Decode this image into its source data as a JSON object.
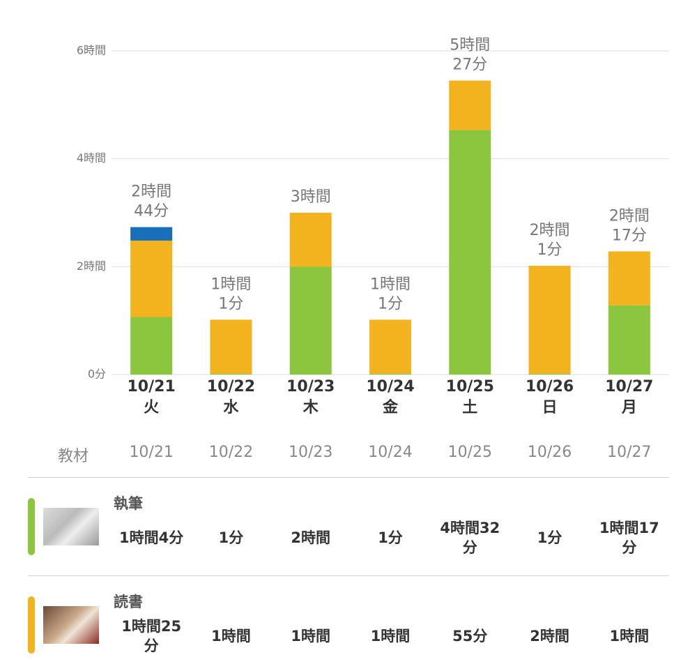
{
  "chart_data": {
    "type": "bar",
    "stacked": true,
    "categories": [
      "10/21",
      "10/22",
      "10/23",
      "10/24",
      "10/25",
      "10/26",
      "10/27"
    ],
    "weekdays": [
      "火",
      "水",
      "木",
      "金",
      "土",
      "日",
      "月"
    ],
    "series": [
      {
        "name": "執筆",
        "color": "#8cc63f",
        "values": [
          1.0667,
          0.0167,
          2,
          0.0167,
          4.5333,
          0.0167,
          1.2833
        ],
        "value_labels": [
          "1時間4分",
          "1分",
          "2時間",
          "1分",
          "4時間32分",
          "1分",
          "1時間17分"
        ]
      },
      {
        "name": "読書",
        "color": "#f2b31e",
        "values": [
          1.4167,
          1,
          1,
          1,
          0.9167,
          2,
          1
        ],
        "value_labels": [
          "1時間25分",
          "1時間",
          "1時間",
          "1時間",
          "55分",
          "2時間",
          "1時間"
        ]
      },
      {
        "color": "#1a6fba",
        "values": [
          0.25,
          0,
          0,
          0,
          0,
          0,
          0
        ]
      }
    ],
    "totals": [
      2.7333,
      1.0167,
      3,
      1.0167,
      5.45,
      2.0167,
      2.2833
    ],
    "total_labels": [
      "2時間44分",
      "1時間1分",
      "3時間",
      "1時間1分",
      "5時間27分",
      "2時間1分",
      "2時間17分"
    ],
    "ylim": [
      0,
      6
    ],
    "yticks": [
      {
        "value": 0,
        "label": "0分"
      },
      {
        "value": 2,
        "label": "2時間"
      },
      {
        "value": 4,
        "label": "4時間"
      },
      {
        "value": 6,
        "label": "6時間"
      }
    ],
    "grid": true
  },
  "table": {
    "header": "教材"
  }
}
